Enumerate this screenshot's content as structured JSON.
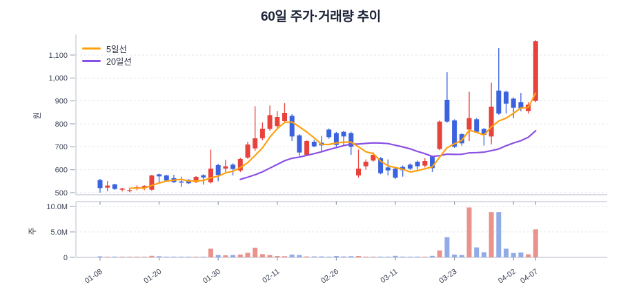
{
  "title": "60일 주가·거래량 추이",
  "legend": [
    {
      "label": "5일선",
      "window": 5,
      "color": "#ffa00f"
    },
    {
      "label": "20일선",
      "window": 20,
      "color": "#8a4fe3"
    }
  ],
  "price_axis": {
    "unit": "원",
    "ticks": [
      {
        "value": 500,
        "label": "500"
      },
      {
        "value": 600,
        "label": "600"
      },
      {
        "value": 700,
        "label": "700"
      },
      {
        "value": 800,
        "label": "800"
      },
      {
        "value": 900,
        "label": "900"
      },
      {
        "value": 1000,
        "label": "1,000"
      },
      {
        "value": 1100,
        "label": "1,100"
      }
    ]
  },
  "volume_axis": {
    "unit": "주",
    "ticks": [
      {
        "value": 0,
        "label": "0"
      },
      {
        "value": 5,
        "label": "5.0M"
      },
      {
        "value": 10,
        "label": "10.0M"
      }
    ]
  },
  "colors": {
    "bullish": "#e8423c",
    "bearish": "#3c63de",
    "bullish_volume": "#ea938d",
    "bearish_volume": "#91abe6",
    "ma5": "#ffa00f",
    "ma20": "#8a4fe3",
    "grid": "#e4e6ec",
    "axis": "#c3c8d4",
    "tick_mark": "#8e94a3",
    "tick_text": "#3b4254",
    "title_text": "#1d2438"
  },
  "chart_data": {
    "type": "candlestick",
    "note": "60 daily candles; values are [open, high, low, close, volume_millions]; red=up, blue=down",
    "x_ticks": [
      {
        "index": 0,
        "label": "01-08"
      },
      {
        "index": 8,
        "label": "01-20"
      },
      {
        "index": 16,
        "label": "01-30"
      },
      {
        "index": 24,
        "label": "02-11"
      },
      {
        "index": 32,
        "label": "02-26"
      },
      {
        "index": 40,
        "label": "03-11"
      },
      {
        "index": 48,
        "label": "03-23"
      },
      {
        "index": 56,
        "label": "04-02"
      },
      {
        "index": 59,
        "label": "04-07"
      }
    ],
    "price_range": [
      500,
      1100
    ],
    "volume_range_millions": [
      0,
      10
    ],
    "candles": [
      [
        555,
        560,
        500,
        520,
        0.2
      ],
      [
        522,
        551,
        506,
        531,
        0.1
      ],
      [
        536,
        539,
        512,
        516,
        0.15
      ],
      [
        513,
        521,
        505,
        518,
        0.06
      ],
      [
        508,
        516,
        502,
        511,
        0.05
      ],
      [
        518,
        532,
        510,
        524,
        0.08
      ],
      [
        521,
        532,
        511,
        529,
        0.08
      ],
      [
        513,
        578,
        508,
        575,
        0.3
      ],
      [
        580,
        583,
        540,
        571,
        0.22
      ],
      [
        575,
        578,
        550,
        553,
        0.1
      ],
      [
        563,
        578,
        543,
        546,
        0.12
      ],
      [
        549,
        570,
        525,
        544,
        0.1
      ],
      [
        556,
        559,
        538,
        541,
        0.08
      ],
      [
        546,
        572,
        542,
        569,
        0.12
      ],
      [
        576,
        580,
        535,
        566,
        0.1
      ],
      [
        545,
        688,
        540,
        605,
        1.7
      ],
      [
        620,
        626,
        550,
        577,
        0.45
      ],
      [
        605,
        643,
        590,
        615,
        0.4
      ],
      [
        622,
        628,
        575,
        603,
        0.45
      ],
      [
        597,
        652,
        590,
        647,
        0.55
      ],
      [
        653,
        722,
        648,
        710,
        0.9
      ],
      [
        693,
        877,
        682,
        737,
        1.9
      ],
      [
        737,
        806,
        728,
        779,
        0.63
      ],
      [
        778,
        880,
        770,
        838,
        0.45
      ],
      [
        790,
        856,
        782,
        830,
        0.27
      ],
      [
        812,
        890,
        805,
        848,
        0.23
      ],
      [
        835,
        842,
        725,
        745,
        0.54
      ],
      [
        750,
        755,
        660,
        675,
        0.45
      ],
      [
        665,
        728,
        660,
        725,
        0.18
      ],
      [
        722,
        730,
        698,
        702,
        0.18
      ],
      [
        718,
        748,
        680,
        706,
        0.18
      ],
      [
        775,
        780,
        735,
        742,
        0.14
      ],
      [
        760,
        765,
        700,
        708,
        0.27
      ],
      [
        765,
        770,
        705,
        745,
        0.18
      ],
      [
        760,
        765,
        665,
        700,
        0.23
      ],
      [
        575,
        688,
        565,
        605,
        0.27
      ],
      [
        615,
        645,
        600,
        635,
        0.15
      ],
      [
        640,
        676,
        635,
        665,
        0.14
      ],
      [
        650,
        655,
        580,
        585,
        0.14
      ],
      [
        610,
        645,
        575,
        597,
        0.12
      ],
      [
        605,
        612,
        560,
        565,
        0.3
      ],
      [
        612,
        618,
        570,
        598,
        0.15
      ],
      [
        622,
        628,
        598,
        605,
        0.12
      ],
      [
        635,
        640,
        600,
        615,
        0.15
      ],
      [
        618,
        650,
        610,
        638,
        0.12
      ],
      [
        658,
        662,
        590,
        607,
        0.3
      ],
      [
        690,
        815,
        685,
        810,
        1.35
      ],
      [
        905,
        1025,
        805,
        810,
        3.95
      ],
      [
        815,
        820,
        695,
        700,
        0.55
      ],
      [
        755,
        760,
        705,
        715,
        0.45
      ],
      [
        775,
        940,
        725,
        825,
        9.8
      ],
      [
        820,
        825,
        760,
        765,
        1.95
      ],
      [
        778,
        782,
        705,
        752,
        1.0
      ],
      [
        745,
        980,
        710,
        875,
        8.9
      ],
      [
        945,
        1130,
        840,
        845,
        8.9
      ],
      [
        940,
        945,
        845,
        888,
        1.7
      ],
      [
        910,
        915,
        825,
        870,
        0.85
      ],
      [
        895,
        935,
        855,
        868,
        0.95
      ],
      [
        856,
        895,
        845,
        884,
        0.6
      ],
      [
        900,
        1165,
        895,
        1160,
        5.5
      ]
    ]
  }
}
